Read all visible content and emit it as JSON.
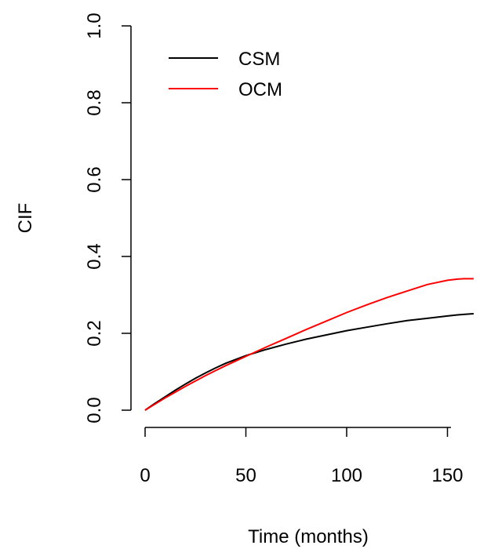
{
  "chart_data": {
    "type": "line",
    "title": "",
    "xlabel": "Time (months)",
    "ylabel": "CIF",
    "xlim": [
      0,
      165
    ],
    "ylim": [
      0,
      1
    ],
    "x_ticks": [
      0,
      50,
      100,
      150
    ],
    "y_ticks": [
      0.0,
      0.2,
      0.4,
      0.6,
      0.8,
      1.0
    ],
    "x_tick_labels": [
      "0",
      "50",
      "100",
      "150"
    ],
    "y_tick_labels": [
      "0.0",
      "0.2",
      "0.4",
      "0.6",
      "0.8",
      "1.0"
    ],
    "grid": false,
    "legend": {
      "position": "top-left",
      "entries": [
        "CSM",
        "OCM"
      ]
    },
    "series": [
      {
        "name": "CSM",
        "color": "#000000",
        "x": [
          0,
          5,
          10,
          15,
          20,
          25,
          30,
          35,
          40,
          45,
          50,
          55,
          60,
          70,
          80,
          90,
          100,
          110,
          120,
          130,
          140,
          150,
          155,
          160,
          163
        ],
        "y": [
          0,
          0.018,
          0.035,
          0.052,
          0.068,
          0.083,
          0.097,
          0.11,
          0.122,
          0.132,
          0.142,
          0.15,
          0.158,
          0.172,
          0.185,
          0.196,
          0.207,
          0.216,
          0.225,
          0.233,
          0.239,
          0.245,
          0.248,
          0.25,
          0.251
        ]
      },
      {
        "name": "OCM",
        "color": "#ff0000",
        "x": [
          0,
          5,
          10,
          15,
          20,
          25,
          30,
          35,
          40,
          45,
          50,
          55,
          60,
          70,
          80,
          90,
          100,
          110,
          120,
          130,
          140,
          150,
          155,
          158,
          160,
          163
        ],
        "y": [
          0,
          0.016,
          0.032,
          0.047,
          0.062,
          0.076,
          0.09,
          0.103,
          0.116,
          0.128,
          0.14,
          0.152,
          0.164,
          0.187,
          0.21,
          0.232,
          0.254,
          0.274,
          0.293,
          0.31,
          0.327,
          0.338,
          0.341,
          0.342,
          0.342,
          0.342
        ]
      }
    ]
  }
}
